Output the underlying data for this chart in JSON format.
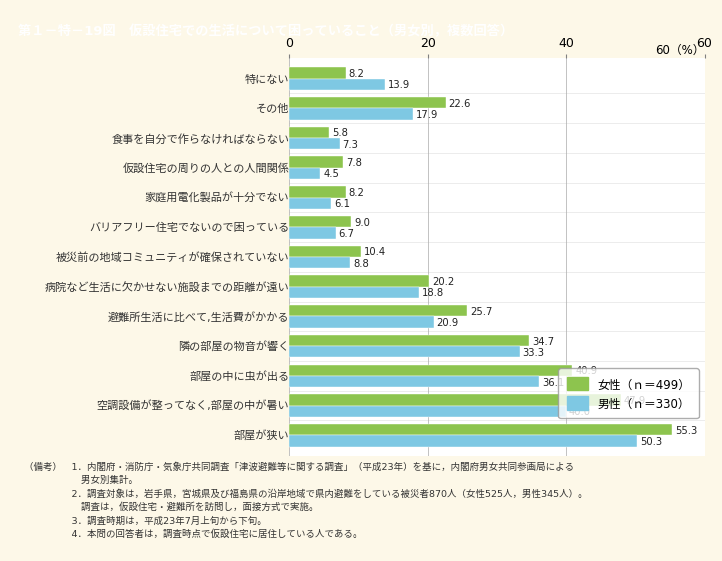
{
  "title": "第１－特－19図　仮設住宅での生活について困っていること（男女別，複数回答）",
  "categories": [
    "部屋が狭い",
    "空調設備が整ってなく,部屋の中が暑い",
    "部屋の中に虫が出る",
    "隣の部屋の物音が響く",
    "避難所生活に比べて,生活費がかかる",
    "病院など生活に欠かせない施設までの距離が遠い",
    "被災前の地域コミュニティが確保されていない",
    "バリアフリー住宅でないので困っている",
    "家庭用電化製品が十分でない",
    "仮設住宅の周りの人との人間関係",
    "食事を自分で作らなければならない",
    "その他",
    "特にない"
  ],
  "female_values": [
    55.3,
    47.9,
    40.9,
    34.7,
    25.7,
    20.2,
    10.4,
    9.0,
    8.2,
    7.8,
    5.8,
    22.6,
    8.2
  ],
  "male_values": [
    50.3,
    40.0,
    36.1,
    33.3,
    20.9,
    18.8,
    8.8,
    6.7,
    6.1,
    4.5,
    7.3,
    17.9,
    13.9
  ],
  "female_color": "#8dc44e",
  "male_color": "#7ec8e3",
  "female_label": "女性（ｎ＝499）",
  "male_label": "男性（ｎ＝330）",
  "xlim": [
    0,
    60
  ],
  "xticks": [
    0,
    20,
    40,
    60
  ],
  "background_color": "#fdf8e8",
  "title_bg_color": "#8b6f3e",
  "title_text_color": "#ffffff",
  "footnotes": [
    "（備考）　1．内閣府・消防庁・気象庁共同調査「津波避難等に関する調査」（平成23年）を基に，内閣府男女共同参画局による",
    "　　　　　　男女別集計。",
    "　　　　　2．調査対象は，岩手県，宮城県及び福島県の沿岸地域で県内避難をしている被災者870人（女性525人，男性345人）。",
    "　　　　　　調査は，仮設住宅・避難所を訪問し，面接方式で実施。",
    "　　　　　3．調査時期は，平成23年7月上旬から下旬。",
    "　　　　　4．本問の回答者は，調査時点で仮設住宅に居住している人である。"
  ]
}
